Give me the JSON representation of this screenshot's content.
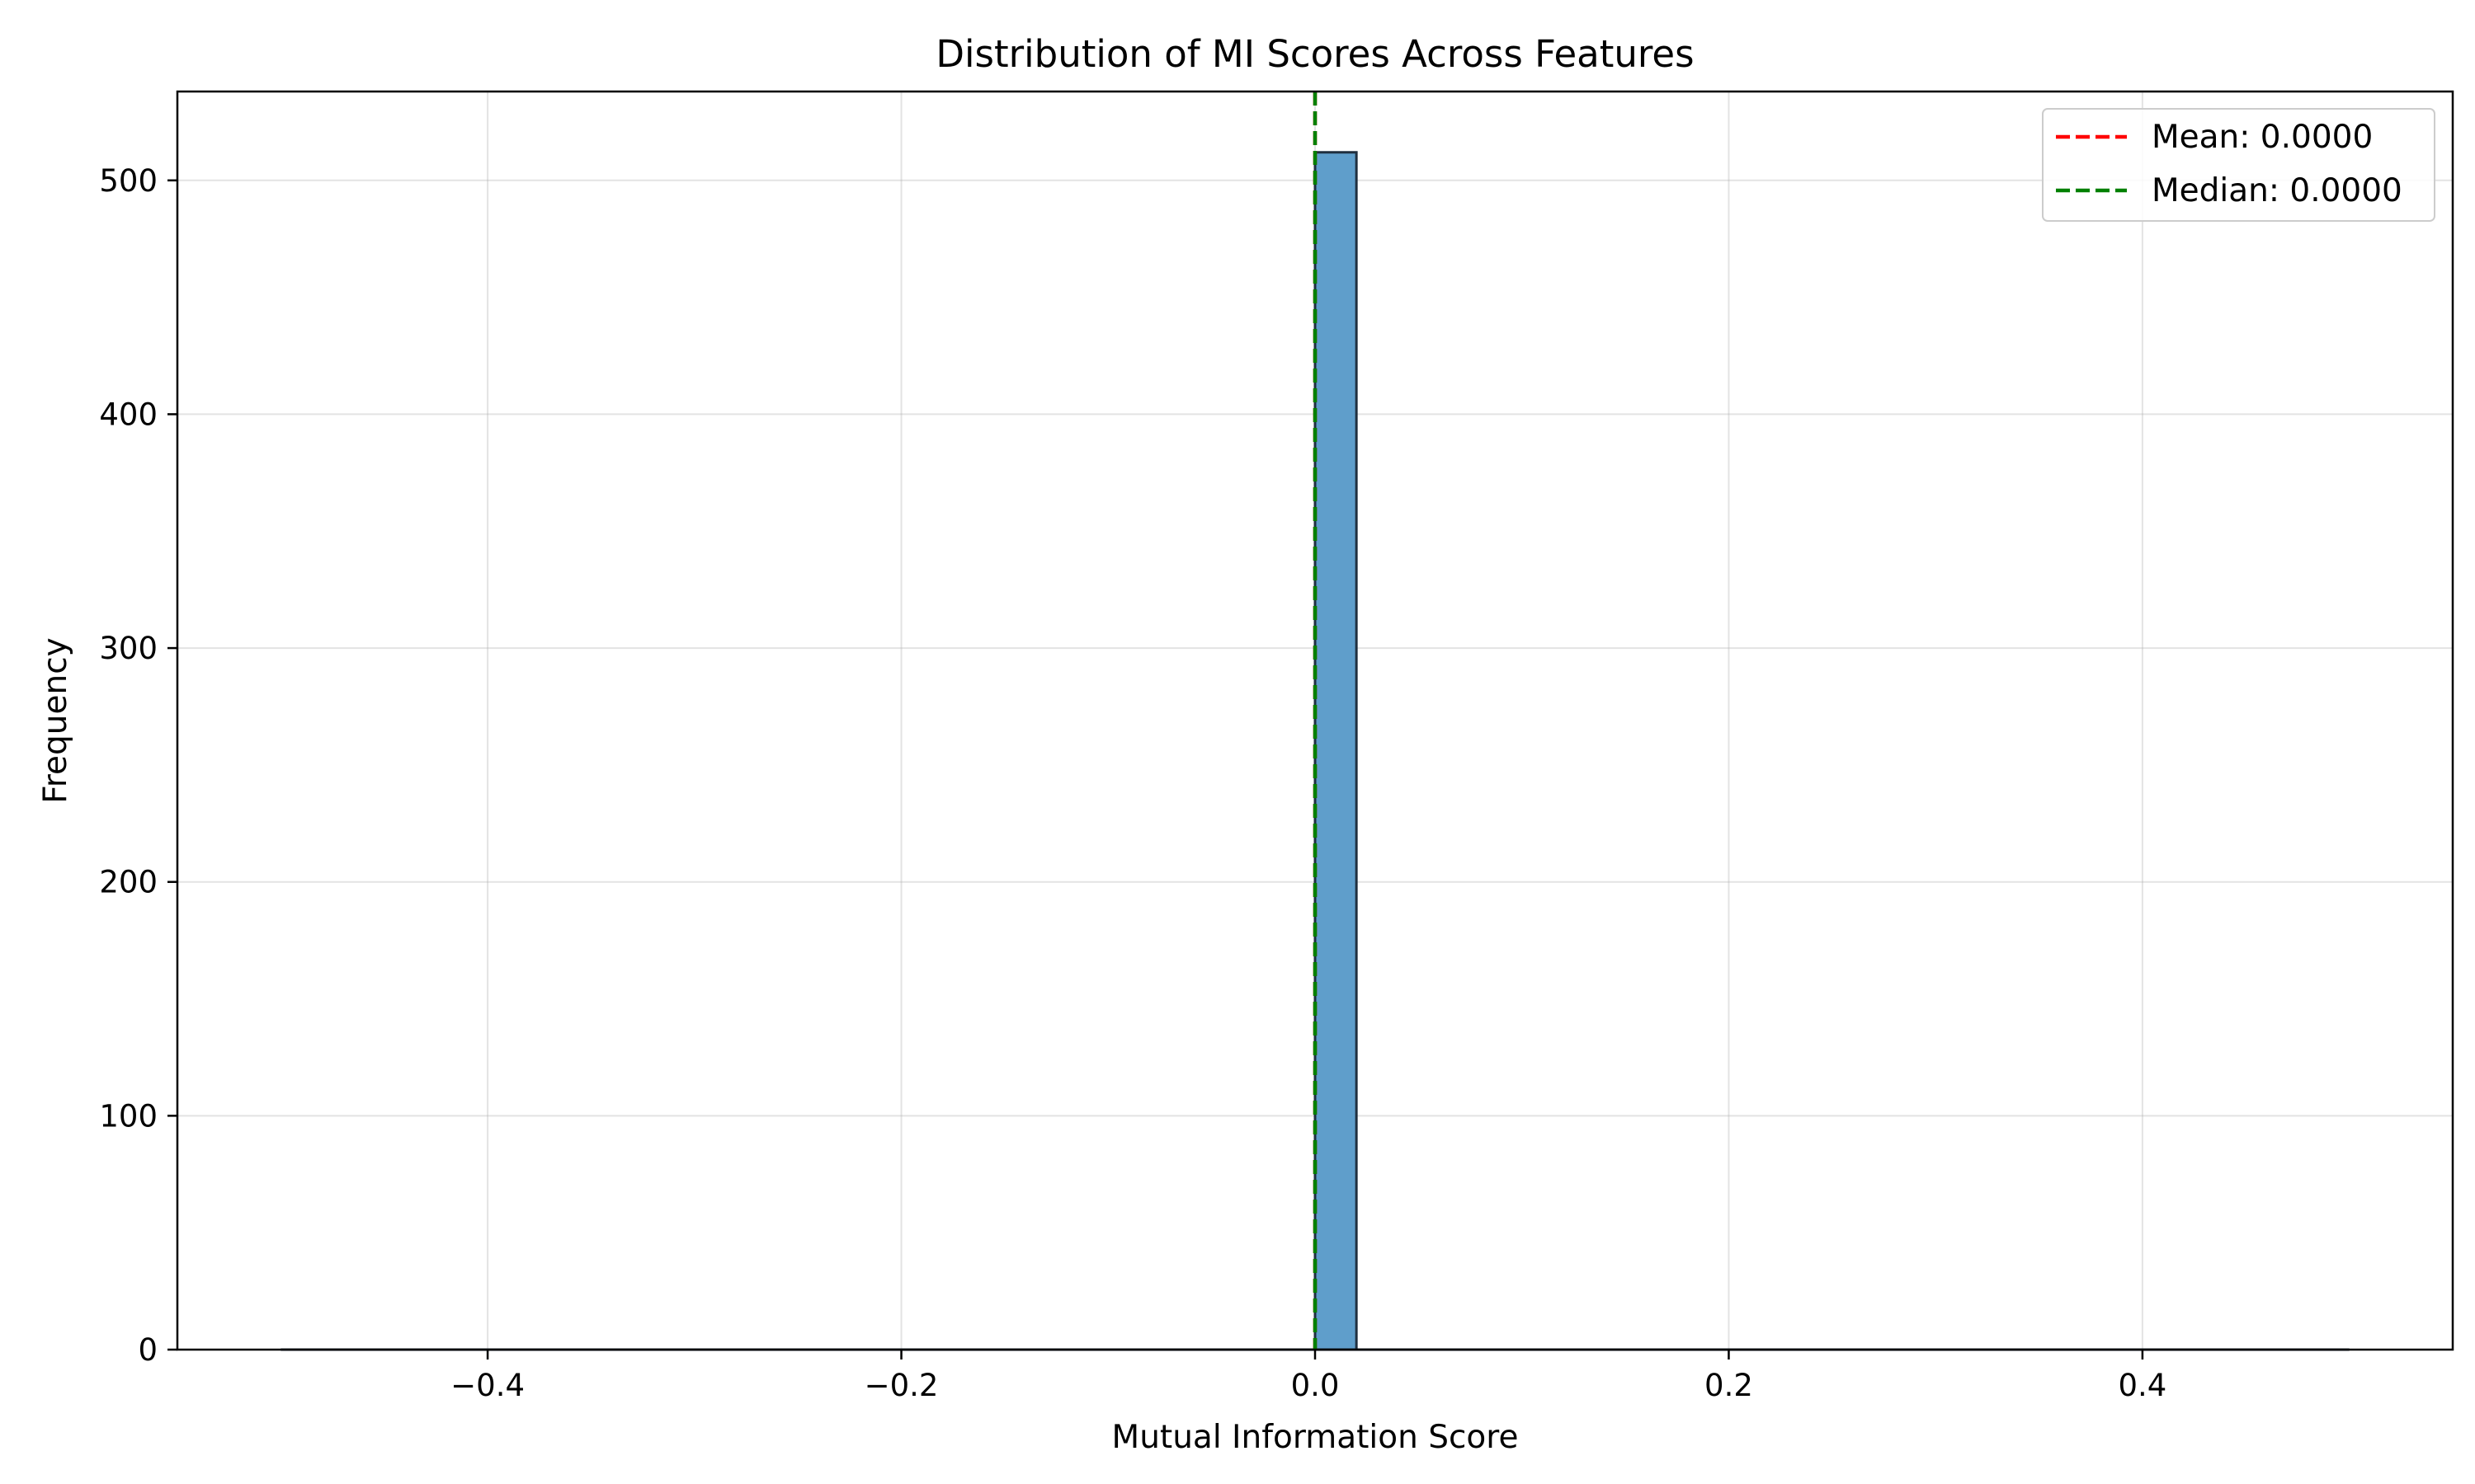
{
  "chart_data": {
    "type": "bar",
    "title": "Distribution of MI Scores Across Features",
    "xlabel": "Mutual Information Score",
    "ylabel": "Frequency",
    "xlim": [
      -0.55,
      0.55
    ],
    "ylim": [
      0,
      538
    ],
    "xticks": [
      -0.4,
      -0.2,
      0.0,
      0.2,
      0.4
    ],
    "xtick_labels": [
      "−0.4",
      "−0.2",
      "0.0",
      "0.2",
      "0.4"
    ],
    "yticks": [
      0,
      100,
      200,
      300,
      400,
      500
    ],
    "ytick_labels": [
      "0",
      "100",
      "200",
      "300",
      "400",
      "500"
    ],
    "grid": true,
    "bins": [
      {
        "x0": 0.0,
        "x1": 0.02,
        "count": 512
      }
    ],
    "baseline_range": [
      -0.5,
      0.5
    ],
    "bar_color": "#5f9ecb",
    "bar_edge_color": "#1f2f3f",
    "vlines": [
      {
        "label": "Mean: 0.0000",
        "x": 0.0,
        "color": "#ff0000",
        "style": "dashed"
      },
      {
        "label": "Median: 0.0000",
        "x": 0.0,
        "color": "#008000",
        "style": "dashed"
      }
    ],
    "legend_position": "upper-right"
  }
}
